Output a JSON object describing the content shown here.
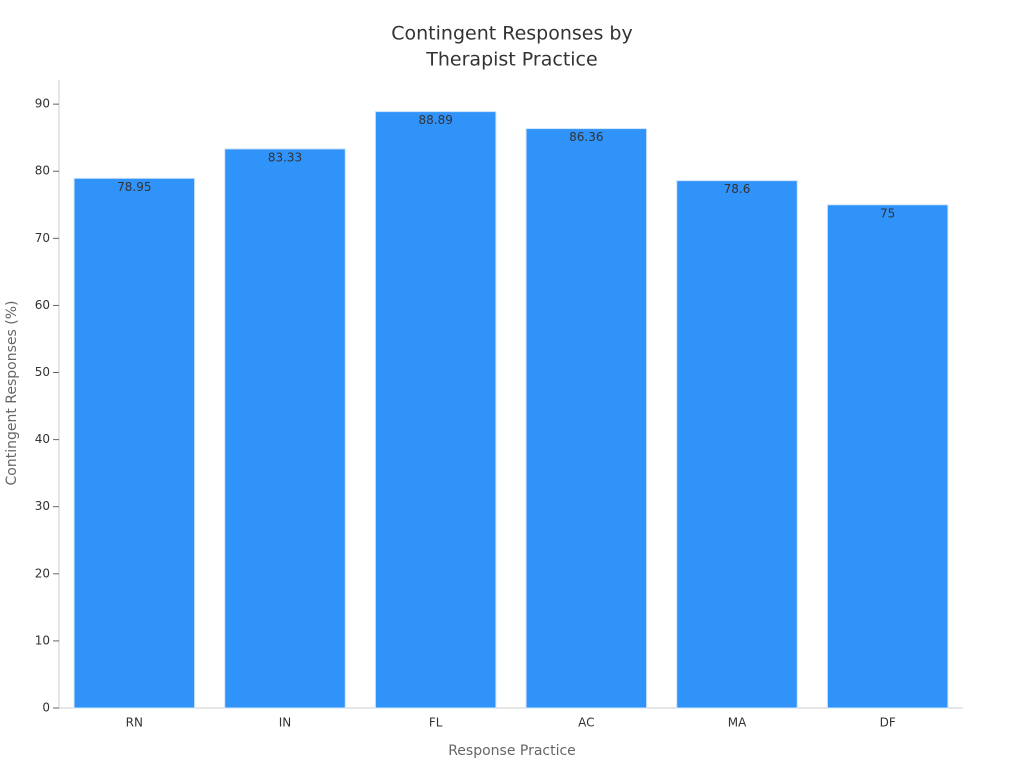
{
  "chart_data": {
    "type": "bar",
    "title": [
      "Contingent Responses by",
      "Therapist Practice"
    ],
    "x_label": "Response Practice",
    "y_label": "Contingent Responses (%)",
    "categories": [
      "RN",
      "IN",
      "FL",
      "AC",
      "MA",
      "DF"
    ],
    "values": [
      78.95,
      83.33,
      88.89,
      86.36,
      78.6,
      75
    ],
    "color": "#2f93fa",
    "ylim": [
      0,
      93.6
    ],
    "yticks": [
      0,
      10,
      20,
      30,
      40,
      50,
      60,
      70,
      80,
      90
    ],
    "grid": false
  }
}
